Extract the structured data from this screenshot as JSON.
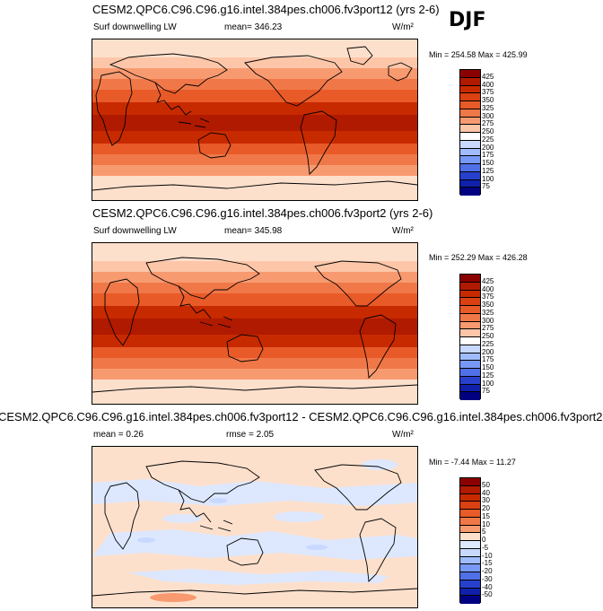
{
  "season": "DJF",
  "panels": [
    {
      "title": "CESM2.QPC6.C96.C96.g16.intel.384pes.ch006.fv3port12 (yrs 2-6)",
      "variable": "Surf downwelling LW",
      "stat1": "mean= 346.23",
      "stat2": "",
      "units": "W/m²",
      "minmax": "Min = 254.58 Max = 425.99",
      "colorbar_labels": [
        "425",
        "400",
        "375",
        "350",
        "325",
        "300",
        "275",
        "250",
        "225",
        "200",
        "175",
        "150",
        "125",
        "100",
        "75"
      ],
      "colorbar_colors": [
        "#8b0000",
        "#b01a00",
        "#c82a00",
        "#db4012",
        "#e85a28",
        "#f07848",
        "#f89a70",
        "#fdc6a8",
        "#ffffff",
        "#c8d8ff",
        "#a0bcff",
        "#7898f6",
        "#5070e8",
        "#2840cc",
        "#1020aa",
        "#000080"
      ]
    },
    {
      "title": "CESM2.QPC6.C96.C96.g16.intel.384pes.ch006.fv3port2 (yrs 2-6)",
      "variable": "Surf downwelling LW",
      "stat1": "mean= 345.98",
      "stat2": "",
      "units": "W/m²",
      "minmax": "Min = 252.29 Max = 426.28",
      "colorbar_labels": [
        "425",
        "400",
        "375",
        "350",
        "325",
        "300",
        "275",
        "250",
        "225",
        "200",
        "175",
        "150",
        "125",
        "100",
        "75"
      ],
      "colorbar_colors": [
        "#8b0000",
        "#b01a00",
        "#c82a00",
        "#db4012",
        "#e85a28",
        "#f07848",
        "#f89a70",
        "#fdc6a8",
        "#ffffff",
        "#c8d8ff",
        "#a0bcff",
        "#7898f6",
        "#5070e8",
        "#2840cc",
        "#1020aa",
        "#000080"
      ]
    },
    {
      "title": "CESM2.QPC6.C96.C96.g16.intel.384pes.ch006.fv3port12 - CESM2.QPC6.C96.C96.g16.intel.384pes.ch006.fv3port2",
      "variable": "mean =   0.26",
      "stat1": "rmse =   2.05",
      "stat2": "",
      "units": "W/m²",
      "minmax": "Min = -7.44 Max = 11.27",
      "colorbar_labels": [
        "50",
        "40",
        "30",
        "20",
        "15",
        "10",
        "5",
        "0",
        "-5",
        "-10",
        "-15",
        "-20",
        "-30",
        "-40",
        "-50"
      ],
      "colorbar_colors": [
        "#8b0000",
        "#b01a00",
        "#c82a00",
        "#db4012",
        "#e85a28",
        "#f07848",
        "#f89a70",
        "#fde0cc",
        "#dde8ff",
        "#c8d8ff",
        "#a0bcff",
        "#7898f6",
        "#5070e8",
        "#2840cc",
        "#1020aa",
        "#000080"
      ]
    }
  ]
}
